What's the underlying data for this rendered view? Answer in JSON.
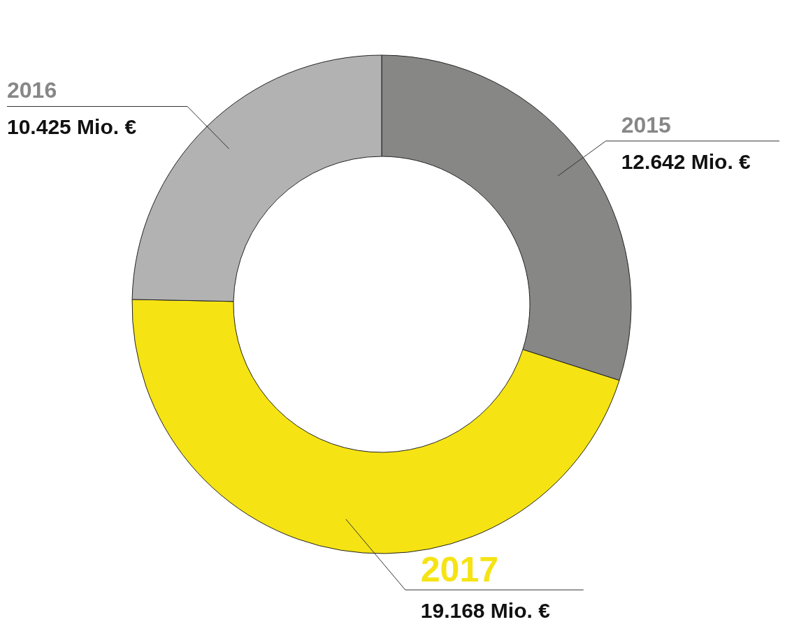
{
  "chart_data": {
    "type": "donut",
    "categories": [
      "2015",
      "2017",
      "2016"
    ],
    "values": [
      12642,
      19168,
      10425
    ],
    "colors": [
      "#878785",
      "#f5e314",
      "#b2b2b2"
    ],
    "value_labels": [
      "12.642 Mio. €",
      "19.168 Mio. €",
      "10.425 Mio. €"
    ]
  }
}
